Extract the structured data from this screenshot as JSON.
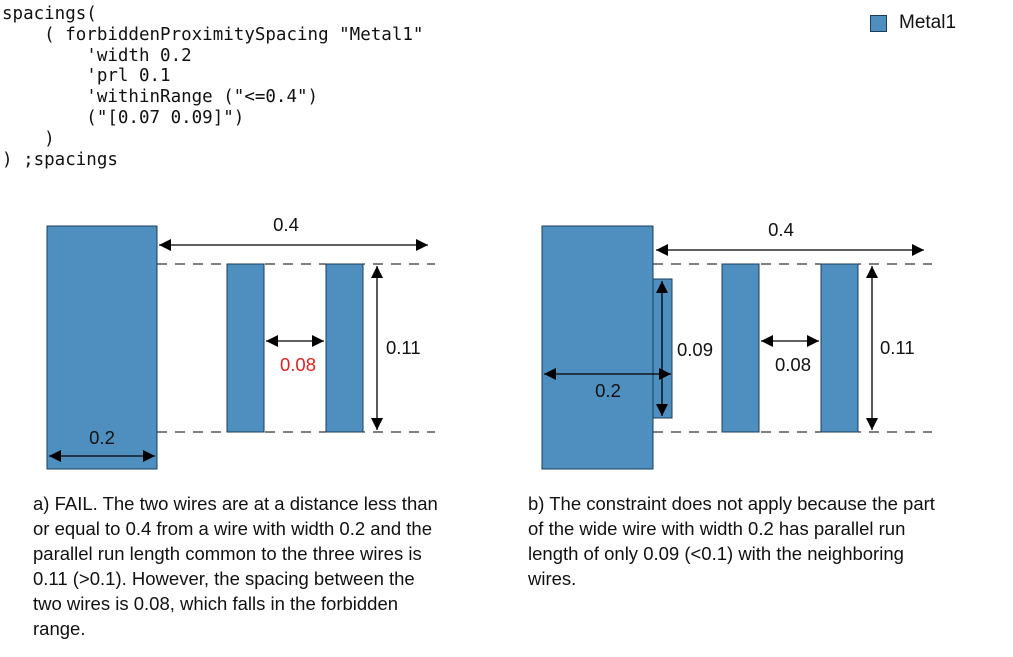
{
  "code_lines": [
    "spacings(",
    "    ( forbiddenProximitySpacing \"Metal1\"",
    "        'width 0.2",
    "        'prl 0.1",
    "        'withinRange (\"<=0.4\")",
    "        (\"[0.07 0.09]\")",
    "    )",
    ") ;spacings"
  ],
  "legend": {
    "label": "Metal1",
    "color": "#4f8fbf"
  },
  "colors": {
    "metal": "#4f8fbf",
    "metal_border": "#1a3d5c",
    "violation": "#e8201c"
  },
  "diagram_a": {
    "range_label": "0.4",
    "wide_width_label": "0.2",
    "spacing_label": "0.08",
    "prl_label": "0.11",
    "caption": [
      "a) FAIL. The two wires are at a distance less than",
      "or equal to 0.4 from a wire with width 0.2 and the",
      "parallel run length common to the three wires is",
      "0.11 (>0.1). However, the spacing between the",
      "two wires is 0.08, which falls in the forbidden",
      "range."
    ]
  },
  "diagram_b": {
    "range_label": "0.4",
    "wide_width_label": "0.2",
    "stub_label": "0.09",
    "spacing_label": "0.08",
    "prl_label": "0.11",
    "caption": [
      "b) The constraint does not apply because the part",
      "of the wide wire with width 0.2 has parallel run",
      "length of only 0.09 (<0.1) with the neighboring",
      "wires."
    ]
  }
}
